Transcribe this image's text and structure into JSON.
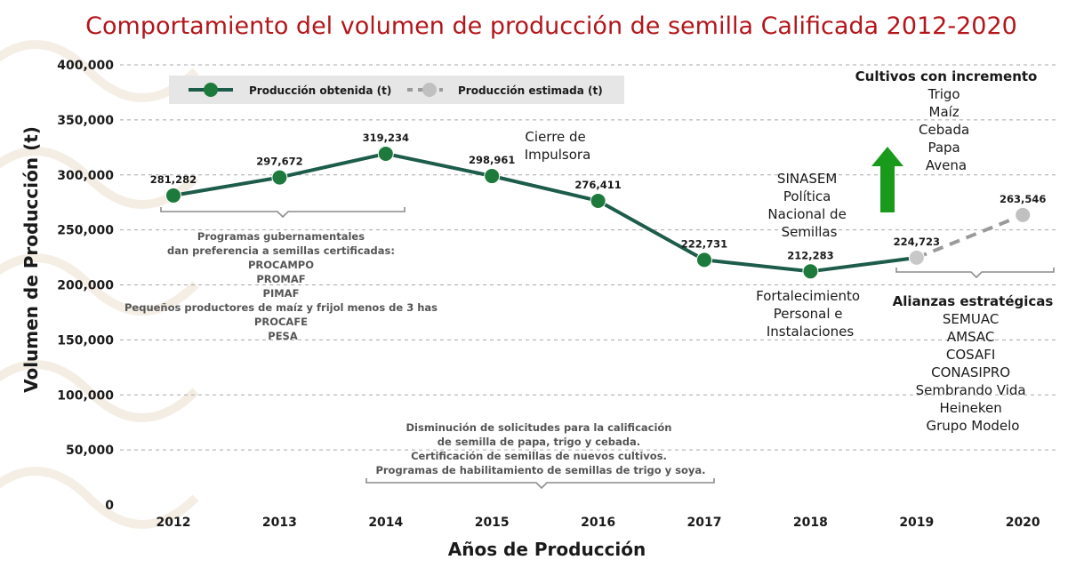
{
  "chart_data": {
    "type": "line",
    "title": "Comportamiento del volumen de producción de semilla Calificada 2012-2020",
    "xlabel": "Años de Producción",
    "ylabel": "Volumen de Producción (t)",
    "categories": [
      "2012",
      "2013",
      "2014",
      "2015",
      "2016",
      "2017",
      "2018",
      "2019",
      "2020"
    ],
    "y_ticks": [
      "0",
      "50,000",
      "100,000",
      "150,000",
      "200,000",
      "250,000",
      "300,000",
      "350,000",
      "400,000"
    ],
    "ylim": [
      0,
      400000
    ],
    "grid": "horizontal dashed",
    "legend_position": "top-left",
    "series": [
      {
        "name": "Producción obtenida (t)",
        "color": "#1d5c4a",
        "marker_color": "#1e7a3c",
        "x": [
          "2012",
          "2013",
          "2014",
          "2015",
          "2016",
          "2017",
          "2018",
          "2019"
        ],
        "values": [
          281282,
          297672,
          319234,
          298961,
          276411,
          222731,
          212283,
          224723
        ],
        "labels": [
          "281,282",
          "297,672",
          "319,234",
          "298,961",
          "276,411",
          "222,731",
          "212,283",
          "224,723"
        ]
      },
      {
        "name": "Producción estimada (t)",
        "color": "#9a9a9a",
        "marker_color": "#c0c0c0",
        "x": [
          "2019",
          "2020"
        ],
        "values": [
          224723,
          263546
        ],
        "labels": [
          "",
          "263,546"
        ]
      }
    ],
    "annotations": {
      "programas": [
        "Programas gubernamentales",
        "dan preferencia a semillas certificadas:",
        "PROCAMPO",
        "PROMAF",
        "PIMAF",
        "Pequeños productores de maíz y frijol menos de 3 has",
        "PROCAFE",
        "PESA"
      ],
      "disminucion": [
        "Disminución de solicitudes para la  calificación",
        "de semilla de papa, trigo y cebada.",
        "Certificación de semillas de nuevos cultivos.",
        "Programas de habilitamiento de semillas de trigo y soya."
      ],
      "cierre": [
        "Cierre de",
        "Impulsora"
      ],
      "sinasem": [
        "SINASEM",
        "Política",
        "Nacional de",
        "Semillas"
      ],
      "fortalecimiento": [
        "Fortalecimiento",
        "Personal e",
        "Instalaciones"
      ],
      "cultivos_title": "Cultivos con incremento",
      "cultivos": [
        "Trigo",
        "Maíz",
        "Cebada",
        "Papa",
        "Avena"
      ],
      "alianzas_title": "Alianzas estratégicas",
      "alianzas": [
        "SEMUAC",
        "AMSAC",
        "COSAFI",
        "CONASIPRO",
        "Sembrando Vida",
        "Heineken",
        "Grupo Modelo"
      ]
    },
    "colors": {
      "title": "#b3161b",
      "arrow": "#1a9a1a",
      "grid": "#a8a8a8",
      "legend_bg": "#e6e6e6",
      "brace": "#8c8c8c"
    }
  }
}
